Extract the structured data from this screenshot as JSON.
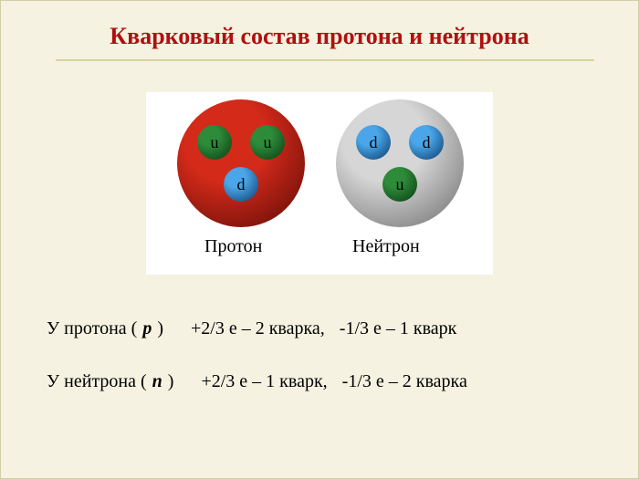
{
  "title": "Кварковый состав протона и нейтрона",
  "diagram": {
    "background_color": "#ffffff",
    "nucleons": [
      {
        "key": "proton",
        "fill_center": "#d42a1a",
        "fill_edge": "#5a0a05",
        "label": "Протон",
        "quarks": [
          {
            "pos": "tl",
            "letter": "u",
            "fill_center": "#2e8b3a",
            "fill_edge": "#0a3a10"
          },
          {
            "pos": "tr",
            "letter": "u",
            "fill_center": "#2e8b3a",
            "fill_edge": "#0a3a10"
          },
          {
            "pos": "b",
            "letter": "d",
            "fill_center": "#4aa6e8",
            "fill_edge": "#0a3a6a"
          }
        ]
      },
      {
        "key": "neutron",
        "fill_center": "#d6d6d6",
        "fill_edge": "#6a6a6a",
        "label": "Нейтрон",
        "quarks": [
          {
            "pos": "tl",
            "letter": "d",
            "fill_center": "#4aa6e8",
            "fill_edge": "#0a3a6a"
          },
          {
            "pos": "tr",
            "letter": "d",
            "fill_center": "#4aa6e8",
            "fill_edge": "#0a3a6a"
          },
          {
            "pos": "b",
            "letter": "u",
            "fill_center": "#2e8b3a",
            "fill_edge": "#0a3a10"
          }
        ]
      }
    ]
  },
  "formula": {
    "proton": {
      "lead": "У протона (",
      "symbol": "p",
      "close": ")",
      "part1": "+2/3 е – 2 кварка,",
      "part2": "-1/3 е – 1 кварк"
    },
    "neutron": {
      "lead": "У нейтрона  (",
      "symbol": "n",
      "close": ")",
      "part1": "+2/3 е – 1 кварк,",
      "part2": "-1/3 е – 2 кварка"
    }
  },
  "style": {
    "page_bg": "#f5f2e1",
    "title_color": "#b01010",
    "title_fontsize": 26,
    "rule_color": "#d8d4a2",
    "body_fontsize": 20,
    "nucleon_diameter": 140,
    "quark_diameter": 38
  }
}
